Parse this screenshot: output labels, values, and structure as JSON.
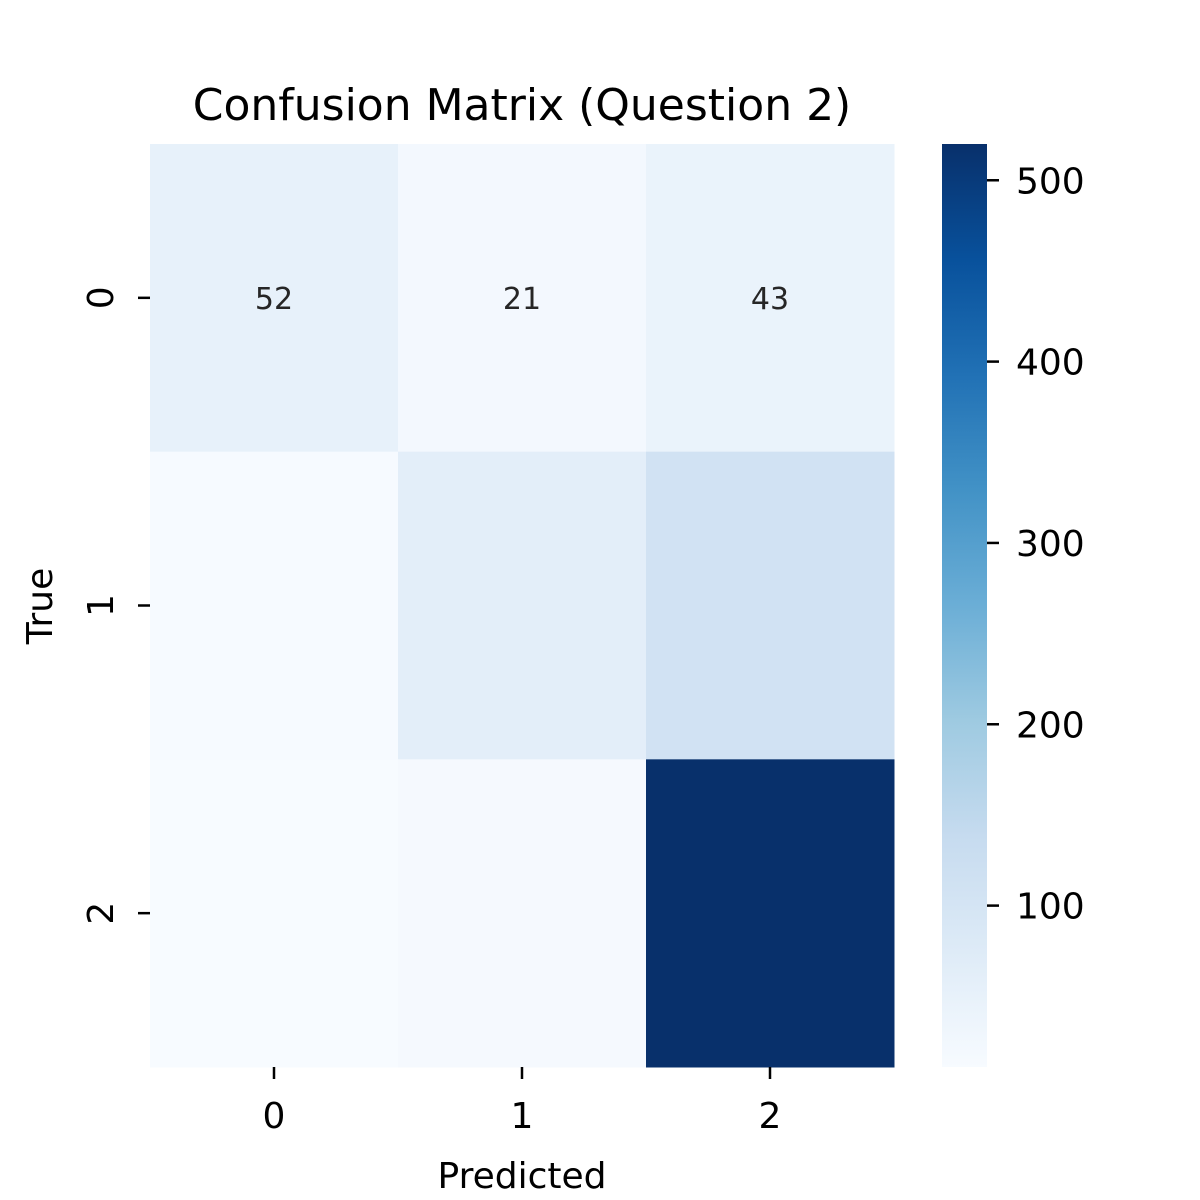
{
  "chart_data": {
    "type": "heatmap",
    "title": "Confusion Matrix (Question 2)",
    "xlabel": "Predicted",
    "ylabel": "True",
    "x_categories": [
      "0",
      "1",
      "2"
    ],
    "y_categories": [
      "0",
      "1",
      "2"
    ],
    "values": [
      [
        52,
        21,
        43
      ],
      [
        14,
        62,
        110
      ],
      [
        11,
        17,
        520
      ]
    ],
    "annotations": [
      [
        "52",
        "21",
        "43"
      ],
      [
        "",
        "",
        ""
      ],
      [
        "",
        "",
        ""
      ]
    ],
    "colormap": "Blues",
    "color_range": [
      11,
      520
    ],
    "colorbar_ticks": [
      "100",
      "200",
      "300",
      "400",
      "500"
    ],
    "colorbar_tick_values": [
      100,
      200,
      300,
      400,
      500
    ]
  }
}
